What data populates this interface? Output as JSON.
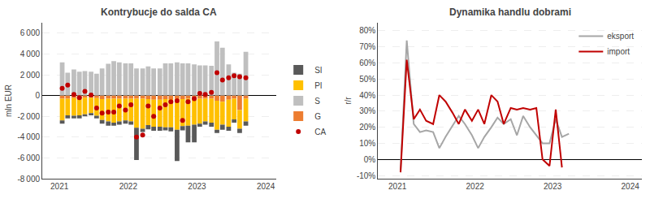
{
  "chart_data": [
    {
      "type": "bar",
      "title": "Kontrybucje do salda CA",
      "ylabel": "mln EUR",
      "stacked": true,
      "grid": true,
      "legend": "right",
      "x": [
        2021.04,
        2021.12,
        2021.21,
        2021.29,
        2021.37,
        2021.46,
        2021.54,
        2021.62,
        2021.71,
        2021.79,
        2021.87,
        2021.96,
        2022.04,
        2022.12,
        2022.21,
        2022.29,
        2022.37,
        2022.46,
        2022.54,
        2022.62,
        2022.71,
        2022.79,
        2022.87,
        2022.96,
        2023.04,
        2023.12,
        2023.21,
        2023.29,
        2023.37,
        2023.46,
        2023.54,
        2023.62,
        2023.71
      ],
      "xlim": [
        2020.75,
        2024.15
      ],
      "xticks": [
        2021,
        2022,
        2023,
        2024
      ],
      "ylim": [
        -8000,
        7000
      ],
      "yticks": [
        {
          "value": -8000,
          "label": "-8 000"
        },
        {
          "value": -6000,
          "label": "-6 000"
        },
        {
          "value": -4000,
          "label": "-4 000"
        },
        {
          "value": -2000,
          "label": "-2 000"
        },
        0,
        {
          "value": 2000,
          "label": "2 000"
        },
        {
          "value": 4000,
          "label": "4 000"
        },
        {
          "value": 6000,
          "label": "6 000"
        }
      ],
      "series": [
        {
          "name": "SI",
          "color": "#595959",
          "values": [
            -300,
            -300,
            -250,
            -300,
            -200,
            -200,
            -250,
            -350,
            -400,
            -300,
            -300,
            -300,
            -300,
            -3100,
            -300,
            -400,
            -400,
            -400,
            -300,
            -400,
            -3000,
            -400,
            -1600,
            -1700,
            -300,
            -300,
            -400,
            -300,
            -500,
            -400,
            -300,
            -400,
            -400
          ]
        },
        {
          "name": "PI",
          "color": "#ffc000",
          "values": [
            -2100,
            -1600,
            -1700,
            -1600,
            -1600,
            -1500,
            -1700,
            -2000,
            -2200,
            -2300,
            -2200,
            -2100,
            -2200,
            -2800,
            -2900,
            -2500,
            -2600,
            -2600,
            -2700,
            -2700,
            -3000,
            -2600,
            -2600,
            -2500,
            -2400,
            -2200,
            -2300,
            -2800,
            -2200,
            -2600,
            -2000,
            -1800,
            -2200
          ]
        },
        {
          "name": "S",
          "color": "#bfbfbf",
          "values": [
            3200,
            2200,
            2500,
            2300,
            2350,
            2300,
            2100,
            2600,
            3050,
            3300,
            3200,
            3100,
            3100,
            2600,
            2600,
            2800,
            2600,
            2600,
            3100,
            3100,
            3200,
            3100,
            3100,
            3000,
            2900,
            2900,
            2850,
            5200,
            4600,
            3000,
            2200,
            2100,
            4200
          ]
        },
        {
          "name": "G",
          "color": "#ed7d31",
          "values": [
            -300,
            -300,
            -250,
            -300,
            -200,
            -200,
            -250,
            -350,
            -300,
            -300,
            -300,
            -300,
            -300,
            -300,
            -300,
            -350,
            -400,
            -400,
            -350,
            -350,
            -300,
            -350,
            -300,
            -300,
            -300,
            -300,
            -300,
            -500,
            -600,
            -400,
            -300,
            -1400,
            -300
          ]
        },
        {
          "name": "CA",
          "type": "scatter",
          "marker": "circle",
          "color": "#c00000",
          "values": [
            700,
            1000,
            100,
            -200,
            400,
            50,
            -1200,
            -1700,
            -1600,
            -1600,
            -1000,
            -1400,
            -900,
            -4000,
            -3800,
            -1000,
            -2000,
            -1200,
            -900,
            -600,
            -500,
            -2400,
            -600,
            -300,
            200,
            100,
            300,
            2200,
            1500,
            1700,
            1900,
            1800,
            1700
          ]
        }
      ]
    },
    {
      "type": "line",
      "title": "Dynamika handlu dobrami",
      "ylabel": "r/r",
      "grid": true,
      "legend": "upper right",
      "xlim": [
        2020.75,
        2024.15
      ],
      "xticks": [
        2021,
        2022,
        2023,
        2024
      ],
      "ylim": [
        -0.12,
        0.85
      ],
      "yticks": [
        {
          "value": -0.1,
          "label": "-10%"
        },
        {
          "value": 0.0,
          "label": "0%"
        },
        {
          "value": 0.1,
          "label": "10%"
        },
        {
          "value": 0.2,
          "label": "20%"
        },
        {
          "value": 0.3,
          "label": "30%"
        },
        {
          "value": 0.4,
          "label": "40%"
        },
        {
          "value": 0.5,
          "label": "50%"
        },
        {
          "value": 0.6,
          "label": "60%"
        },
        {
          "value": 0.7,
          "label": "70%"
        },
        {
          "value": 0.8,
          "label": "80%"
        }
      ],
      "series": [
        {
          "name": "eksport",
          "color": "#a6a6a6",
          "x": [
            2021.04,
            2021.12,
            2021.21,
            2021.29,
            2021.37,
            2021.46,
            2021.54,
            2021.62,
            2021.71,
            2021.79,
            2021.87,
            2021.96,
            2022.04,
            2022.12,
            2022.21,
            2022.29,
            2022.37,
            2022.46,
            2022.54,
            2022.62,
            2022.71,
            2022.79,
            2022.87,
            2022.96,
            2023.04,
            2023.12,
            2023.21
          ],
          "values": [
            -0.07,
            0.74,
            0.22,
            0.17,
            0.18,
            0.17,
            0.07,
            0.14,
            0.21,
            0.27,
            0.22,
            0.15,
            0.07,
            0.14,
            0.2,
            0.26,
            0.22,
            0.25,
            0.15,
            0.27,
            0.2,
            0.15,
            0.1,
            0.1,
            0.25,
            0.14,
            0.16
          ]
        },
        {
          "name": "import",
          "color": "#c00000",
          "x": [
            2021.04,
            2021.12,
            2021.21,
            2021.29,
            2021.37,
            2021.46,
            2021.54,
            2021.62,
            2021.71,
            2021.79,
            2021.87,
            2021.96,
            2022.04,
            2022.12,
            2022.21,
            2022.29,
            2022.37,
            2022.46,
            2022.54,
            2022.62,
            2022.71,
            2022.79,
            2022.87,
            2022.96,
            2023.04,
            2023.12
          ],
          "values": [
            -0.08,
            0.62,
            0.25,
            0.31,
            0.24,
            0.22,
            0.4,
            0.36,
            0.29,
            0.22,
            0.31,
            0.24,
            0.31,
            0.22,
            0.4,
            0.36,
            0.22,
            0.32,
            0.31,
            0.32,
            0.31,
            0.32,
            0.0,
            -0.04,
            0.31,
            -0.05
          ]
        }
      ]
    }
  ]
}
